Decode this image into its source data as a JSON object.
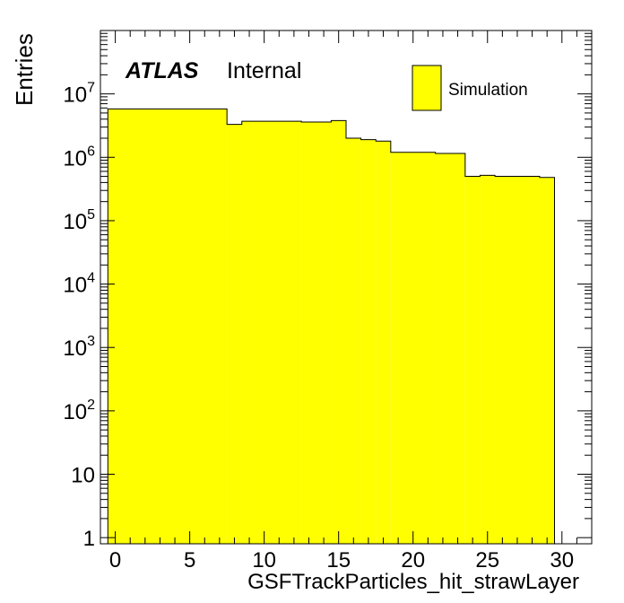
{
  "chart_data": {
    "type": "bar",
    "title": "",
    "xlabel": "GSFTrackParticles_hit_strawLayer",
    "ylabel": "Entries",
    "experiment_label": "ATLAS",
    "status_label": "Internal",
    "legend": [
      {
        "label": "Simulation",
        "color": "#ffff00",
        "position": "top-right"
      }
    ],
    "xlim": [
      -1,
      32
    ],
    "ylim": [
      0.8,
      100000000
    ],
    "yscale": "log",
    "grid": false,
    "fill_color": "#ffff00",
    "x_ticks": [
      0,
      5,
      10,
      15,
      20,
      25,
      30
    ],
    "x_tick_labels": [
      "0",
      "5",
      "10",
      "15",
      "20",
      "25",
      "30"
    ],
    "y_ticks": [
      1,
      10,
      100,
      1000,
      10000,
      100000,
      1000000,
      10000000
    ],
    "y_tick_labels": [
      {
        "base": "1",
        "exp": ""
      },
      {
        "base": "10",
        "exp": ""
      },
      {
        "base": "10",
        "exp": "2"
      },
      {
        "base": "10",
        "exp": "3"
      },
      {
        "base": "10",
        "exp": "4"
      },
      {
        "base": "10",
        "exp": "5"
      },
      {
        "base": "10",
        "exp": "6"
      },
      {
        "base": "10",
        "exp": "7"
      }
    ],
    "bins": [
      {
        "lo": -0.5,
        "hi": 7.5,
        "value": 5800000
      },
      {
        "lo": 7.5,
        "hi": 8.5,
        "value": 3300000
      },
      {
        "lo": 8.5,
        "hi": 12.5,
        "value": 3700000
      },
      {
        "lo": 12.5,
        "hi": 14.5,
        "value": 3600000
      },
      {
        "lo": 14.5,
        "hi": 15.5,
        "value": 3800000
      },
      {
        "lo": 15.5,
        "hi": 16.5,
        "value": 2000000
      },
      {
        "lo": 16.5,
        "hi": 17.5,
        "value": 1900000
      },
      {
        "lo": 17.5,
        "hi": 18.5,
        "value": 1800000
      },
      {
        "lo": 18.5,
        "hi": 21.5,
        "value": 1200000
      },
      {
        "lo": 21.5,
        "hi": 23.5,
        "value": 1150000
      },
      {
        "lo": 23.5,
        "hi": 24.5,
        "value": 500000
      },
      {
        "lo": 24.5,
        "hi": 25.5,
        "value": 520000
      },
      {
        "lo": 25.5,
        "hi": 28.5,
        "value": 500000
      },
      {
        "lo": 28.5,
        "hi": 29.5,
        "value": 480000
      }
    ]
  }
}
